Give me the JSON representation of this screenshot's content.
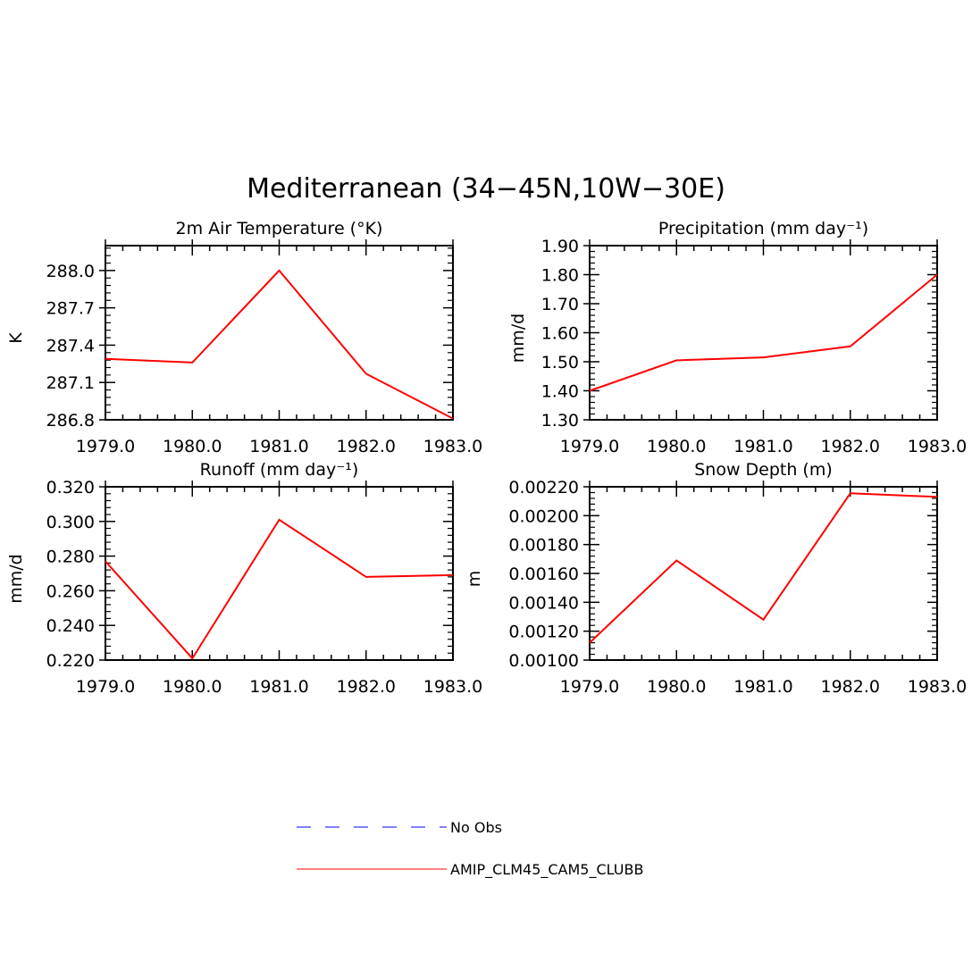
{
  "title": "Mediterranean (34−45N,10W−30E)",
  "colors": {
    "model": "#ff0000",
    "obs": "#0000ff",
    "axis": "#000000"
  },
  "legend": [
    {
      "label": "No Obs",
      "color": "#0000ff",
      "style": "dashed"
    },
    {
      "label": "AMIP_CLM45_CAM5_CLUBB",
      "color": "#ff0000",
      "style": "solid"
    }
  ],
  "chart_data": [
    {
      "type": "line",
      "title": "2m Air Temperature (°K)",
      "ylabel": "K",
      "x": [
        1979,
        1980,
        1981,
        1982,
        1983
      ],
      "xticks": [
        "1979.0",
        "1980.0",
        "1981.0",
        "1982.0",
        "1983.0"
      ],
      "xlim": [
        1979,
        1983
      ],
      "ylim": [
        286.8,
        288.2
      ],
      "yticks": [
        286.8,
        287.1,
        287.4,
        287.7,
        288.0
      ],
      "ytick_labels": [
        "286.8",
        "287.1",
        "287.4",
        "287.7",
        "288.0"
      ],
      "series": [
        {
          "name": "AMIP_CLM45_CAM5_CLUBB",
          "values": [
            287.29,
            287.26,
            288.0,
            287.17,
            286.81
          ]
        }
      ]
    },
    {
      "type": "line",
      "title": "Precipitation (mm day⁻¹)",
      "ylabel": "mm/d",
      "x": [
        1979,
        1980,
        1981,
        1982,
        1983
      ],
      "xticks": [
        "1979.0",
        "1980.0",
        "1981.0",
        "1982.0",
        "1983.0"
      ],
      "xlim": [
        1979,
        1983
      ],
      "ylim": [
        1.3,
        1.9
      ],
      "yticks": [
        1.3,
        1.4,
        1.5,
        1.6,
        1.7,
        1.8,
        1.9
      ],
      "ytick_labels": [
        "1.30",
        "1.40",
        "1.50",
        "1.60",
        "1.70",
        "1.80",
        "1.90"
      ],
      "series": [
        {
          "name": "AMIP_CLM45_CAM5_CLUBB",
          "values": [
            1.4,
            1.505,
            1.515,
            1.553,
            1.8
          ]
        }
      ]
    },
    {
      "type": "line",
      "title": "Runoff (mm day⁻¹)",
      "ylabel": "mm/d",
      "x": [
        1979,
        1980,
        1981,
        1982,
        1983
      ],
      "xticks": [
        "1979.0",
        "1980.0",
        "1981.0",
        "1982.0",
        "1983.0"
      ],
      "xlim": [
        1979,
        1983
      ],
      "ylim": [
        0.22,
        0.32
      ],
      "yticks": [
        0.22,
        0.24,
        0.26,
        0.28,
        0.3,
        0.32
      ],
      "ytick_labels": [
        "0.220",
        "0.240",
        "0.260",
        "0.280",
        "0.300",
        "0.320"
      ],
      "series": [
        {
          "name": "AMIP_CLM45_CAM5_CLUBB",
          "values": [
            0.277,
            0.221,
            0.301,
            0.268,
            0.269
          ]
        }
      ]
    },
    {
      "type": "line",
      "title": "Snow Depth (m)",
      "ylabel": "m",
      "x": [
        1979,
        1980,
        1981,
        1982,
        1983
      ],
      "xticks": [
        "1979.0",
        "1980.0",
        "1981.0",
        "1982.0",
        "1983.0"
      ],
      "xlim": [
        1979,
        1983
      ],
      "ylim": [
        0.001,
        0.0022
      ],
      "yticks": [
        0.001,
        0.0012,
        0.0014,
        0.0016,
        0.0018,
        0.002,
        0.0022
      ],
      "ytick_labels": [
        "0.00100",
        "0.00120",
        "0.00140",
        "0.00160",
        "0.00180",
        "0.00200",
        "0.00220"
      ],
      "series": [
        {
          "name": "AMIP_CLM45_CAM5_CLUBB",
          "values": [
            0.00112,
            0.00169,
            0.00128,
            0.002155,
            0.00213
          ]
        }
      ]
    }
  ]
}
